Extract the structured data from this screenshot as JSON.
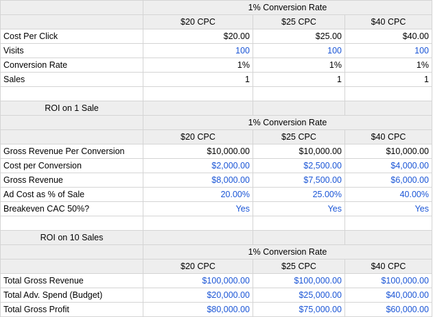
{
  "colors": {
    "header_bg": "#eeeeee",
    "grid_line": "#d4d4d4",
    "formula_blue": "#1a55d6",
    "text": "#000000"
  },
  "section1": {
    "group_header": "1% Conversion Rate",
    "columns": [
      "$20 CPC",
      "$25 CPC",
      "$40 CPC"
    ],
    "rows": [
      {
        "label": "Cost Per Click",
        "values": [
          "$20.00",
          "$25.00",
          "$40.00"
        ],
        "blue": false
      },
      {
        "label": "Visits",
        "values": [
          "100",
          "100",
          "100"
        ],
        "blue": true
      },
      {
        "label": "Conversion Rate",
        "values": [
          "1%",
          "1%",
          "1%"
        ],
        "blue": false
      },
      {
        "label": "Sales",
        "values": [
          "1",
          "1",
          "1"
        ],
        "blue": false
      }
    ]
  },
  "section2": {
    "title": "ROI on 1 Sale",
    "group_header": "1% Conversion Rate",
    "columns": [
      "$20 CPC",
      "$25 CPC",
      "$40 CPC"
    ],
    "rows": [
      {
        "label": "Gross Revenue Per Conversion",
        "values": [
          "$10,000.00",
          "$10,000.00",
          "$10,000.00"
        ],
        "blue": false
      },
      {
        "label": "Cost per Conversion",
        "values": [
          "$2,000.00",
          "$2,500.00",
          "$4,000.00"
        ],
        "blue": true
      },
      {
        "label": "Gross Revenue",
        "values": [
          "$8,000.00",
          "$7,500.00",
          "$6,000.00"
        ],
        "blue": true
      },
      {
        "label": "Ad Cost as % of Sale",
        "values": [
          "20.00%",
          "25.00%",
          "40.00%"
        ],
        "blue": true
      },
      {
        "label": "Breakeven CAC 50%?",
        "values": [
          "Yes",
          "Yes",
          "Yes"
        ],
        "blue": true
      }
    ]
  },
  "section3": {
    "title": "ROI on 10 Sales",
    "group_header": "1% Conversion Rate",
    "columns": [
      "$20 CPC",
      "$25 CPC",
      "$40 CPC"
    ],
    "rows": [
      {
        "label": "Total Gross Revenue",
        "values": [
          "$100,000.00",
          "$100,000.00",
          "$100,000.00"
        ],
        "blue": true
      },
      {
        "label": "Total Adv. Spend (Budget)",
        "values": [
          "$20,000.00",
          "$25,000.00",
          "$40,000.00"
        ],
        "blue": true
      },
      {
        "label": "Total Gross Profit",
        "values": [
          "$80,000.00",
          "$75,000.00",
          "$60,000.00"
        ],
        "blue": true
      }
    ]
  }
}
